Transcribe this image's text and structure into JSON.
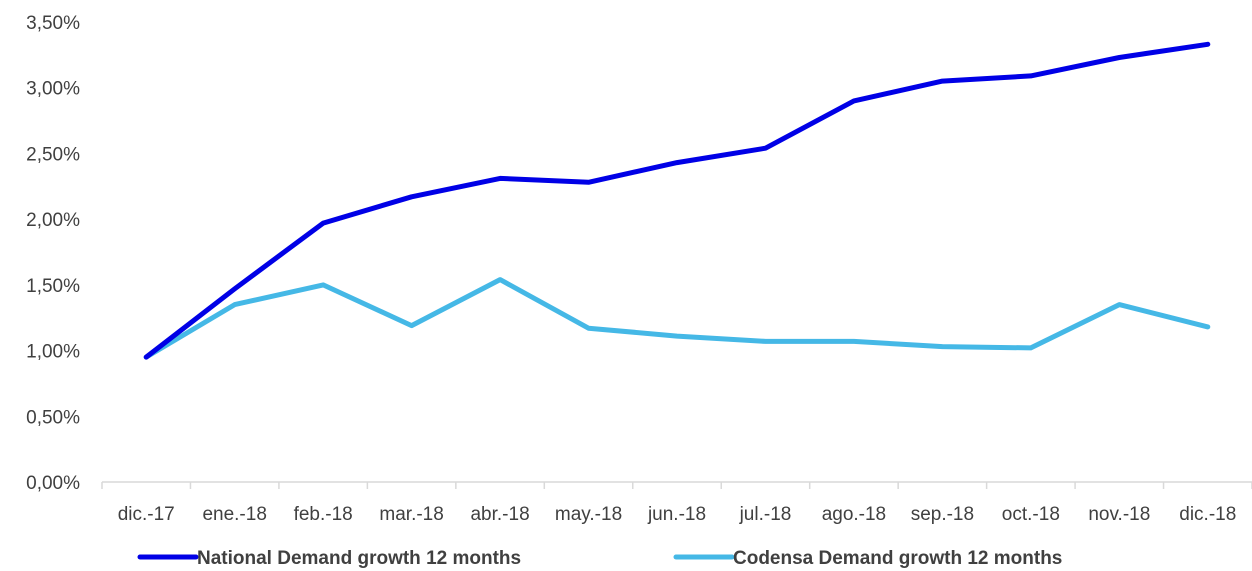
{
  "chart_data": {
    "type": "line",
    "title": "",
    "xlabel": "",
    "ylabel": "",
    "categories": [
      "dic.-17",
      "ene.-18",
      "feb.-18",
      "mar.-18",
      "abr.-18",
      "may.-18",
      "jun.-18",
      "jul.-18",
      "ago.-18",
      "sep.-18",
      "oct.-18",
      "nov.-18",
      "dic.-18"
    ],
    "ylim": [
      0,
      3.5
    ],
    "yticks": [
      "0,00%",
      "0,50%",
      "1,00%",
      "1,50%",
      "2,00%",
      "2,50%",
      "3,00%",
      "3,50%"
    ],
    "grid": false,
    "legend_position": "bottom",
    "series": [
      {
        "name": "National Demand growth 12 months",
        "color": "#0000e6",
        "values": [
          0.95,
          1.47,
          1.97,
          2.17,
          2.31,
          2.28,
          2.43,
          2.54,
          2.9,
          3.05,
          3.09,
          3.23,
          3.33
        ]
      },
      {
        "name": "Codensa Demand growth 12 months",
        "color": "#45b8e6",
        "values": [
          0.95,
          1.35,
          1.5,
          1.19,
          1.54,
          1.17,
          1.11,
          1.07,
          1.07,
          1.03,
          1.02,
          1.35,
          1.18
        ]
      }
    ]
  }
}
